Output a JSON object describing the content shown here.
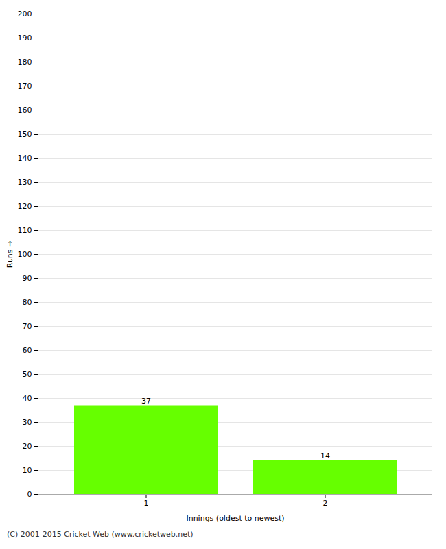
{
  "chart_data": {
    "type": "bar",
    "categories": [
      "1",
      "2"
    ],
    "values": [
      37,
      14
    ],
    "color": "#66ff00",
    "xlabel": "Innings (oldest to newest)",
    "ylabel": "Runs",
    "ylim": [
      0,
      200
    ],
    "yticks": [
      0,
      10,
      20,
      30,
      40,
      50,
      60,
      70,
      80,
      90,
      100,
      110,
      120,
      130,
      140,
      150,
      160,
      170,
      180,
      190,
      200
    ],
    "grid": true,
    "data_labels": true,
    "caption": "(C) 2001-2015 Cricket Web (www.cricketweb.net)"
  }
}
